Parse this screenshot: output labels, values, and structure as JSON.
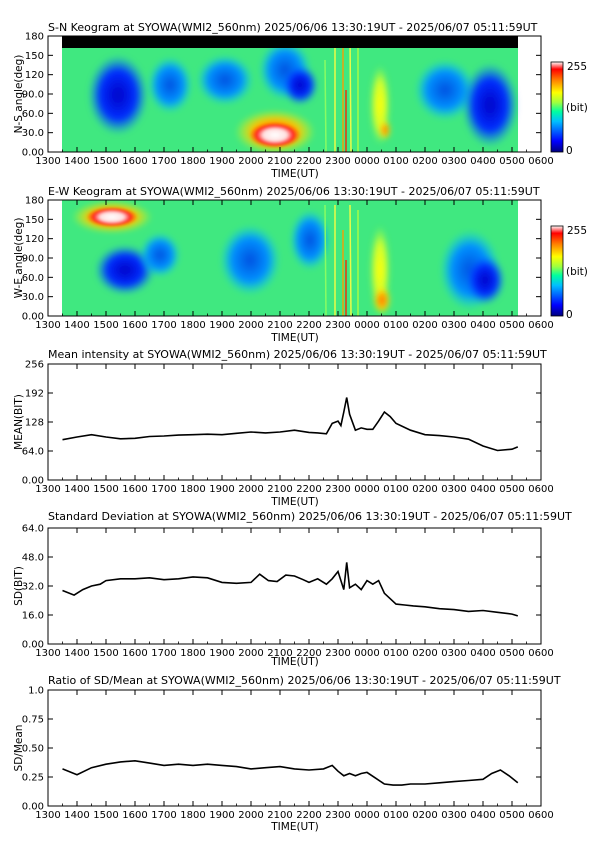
{
  "x_tick_labels": [
    "1300",
    "1400",
    "1500",
    "1600",
    "1700",
    "1800",
    "1900",
    "2000",
    "2100",
    "2200",
    "2300",
    "0000",
    "0100",
    "0200",
    "0300",
    "0400",
    "0500",
    "0600"
  ],
  "colorbar": {
    "max_label": "255",
    "unit_label": "(bit)",
    "min_label": "0"
  },
  "colors": {
    "jet": [
      "#00007f",
      "#0000ff",
      "#007fff",
      "#00ffff",
      "#7fff7f",
      "#ffff00",
      "#ff7f00",
      "#ff0000",
      "#ffffff"
    ]
  },
  "chart_data": [
    {
      "type": "heatmap",
      "title": "S-N Keogram at SYOWA(WMI2_560nm)    2025/06/06 13:30:19UT - 2025/06/07 05:11:59UT",
      "xlabel": "TIME(UT)",
      "ylabel": "N-S angle(deg)",
      "xlim": [
        13,
        30
      ],
      "ylim": [
        0,
        180
      ],
      "yticks": [
        "0.00",
        "30.0",
        "60.0",
        "90.0",
        "120",
        "150",
        "180"
      ],
      "zlim": [
        0,
        255
      ],
      "data_time_range": [
        13.51,
        29.2
      ]
    },
    {
      "type": "heatmap",
      "title": "E-W Keogram at SYOWA(WMI2_560nm)    2025/06/06 13:30:19UT - 2025/06/07 05:11:59UT",
      "xlabel": "TIME(UT)",
      "ylabel": "W-E angle(deg)",
      "xlim": [
        13,
        30
      ],
      "ylim": [
        0,
        180
      ],
      "yticks": [
        "0.00",
        "30.0",
        "60.0",
        "90.0",
        "120",
        "150",
        "180"
      ],
      "zlim": [
        0,
        255
      ],
      "data_time_range": [
        13.51,
        29.2
      ]
    },
    {
      "type": "line",
      "title": "Mean intensity at SYOWA(WMI2_560nm)    2025/06/06 13:30:19UT - 2025/06/07 05:11:59UT",
      "xlabel": "TIME(UT)",
      "ylabel": "MEAN(BIT)",
      "xlim": [
        13,
        30
      ],
      "ylim": [
        0,
        256
      ],
      "yticks": [
        "0.00",
        "64.0",
        "128",
        "192",
        "256"
      ],
      "x": [
        13.5,
        14,
        14.5,
        15,
        15.5,
        16,
        16.5,
        17,
        17.5,
        18,
        18.5,
        19,
        19.5,
        20,
        20.5,
        21,
        21.5,
        22,
        22.3,
        22.6,
        22.8,
        23,
        23.1,
        23.2,
        23.3,
        23.4,
        23.6,
        23.8,
        24,
        24.2,
        24.4,
        24.6,
        24.8,
        25,
        25.5,
        26,
        26.5,
        27,
        27.5,
        28,
        28.5,
        29,
        29.2
      ],
      "y": [
        89,
        95,
        100,
        95,
        91,
        92,
        96,
        97,
        99,
        100,
        101,
        100,
        103,
        106,
        104,
        106,
        110,
        105,
        104,
        102,
        125,
        130,
        120,
        150,
        182,
        145,
        110,
        115,
        112,
        112,
        130,
        150,
        140,
        125,
        110,
        100,
        98,
        95,
        90,
        75,
        65,
        68,
        73
      ]
    },
    {
      "type": "line",
      "title": "Standard Deviation at SYOWA(WMI2_560nm)    2025/06/06 13:30:19UT - 2025/06/07 05:11:59UT",
      "xlabel": "TIME(UT)",
      "ylabel": "SD(BIT)",
      "xlim": [
        13,
        30
      ],
      "ylim": [
        0,
        64
      ],
      "yticks": [
        "0.00",
        "16.0",
        "32.0",
        "48.0",
        "64.0"
      ],
      "x": [
        13.5,
        13.9,
        14.2,
        14.5,
        14.8,
        15,
        15.5,
        16,
        16.5,
        17,
        17.5,
        18,
        18.5,
        19,
        19.5,
        20,
        20.3,
        20.6,
        20.9,
        21.2,
        21.5,
        21.8,
        22,
        22.3,
        22.6,
        22.8,
        23,
        23.2,
        23.3,
        23.4,
        23.6,
        23.8,
        24,
        24.2,
        24.4,
        24.6,
        24.8,
        25,
        25.3,
        25.6,
        26,
        26.5,
        27,
        27.5,
        28,
        28.5,
        29,
        29.2
      ],
      "y": [
        29.5,
        27,
        30,
        32,
        33,
        35,
        36,
        36,
        36.5,
        35.5,
        36,
        37,
        36.5,
        34,
        33.5,
        34,
        38.5,
        35,
        34.5,
        38,
        37.5,
        35.5,
        34,
        36,
        33,
        36,
        40,
        30,
        45,
        31,
        33,
        30,
        35,
        33,
        35,
        28,
        25,
        22,
        21.5,
        21,
        20.5,
        19.5,
        19,
        18,
        18.5,
        17.5,
        16.5,
        15.5
      ]
    },
    {
      "type": "line",
      "title": "Ratio of SD/Mean at SYOWA(WMI2_560nm)    2025/06/06 13:30:19UT - 2025/06/07 05:11:59UT",
      "xlabel": "TIME(UT)",
      "ylabel": "SD/Mean",
      "xlim": [
        13,
        30
      ],
      "ylim": [
        0,
        1
      ],
      "yticks": [
        "0.00",
        "0.25",
        "0.50",
        "0.75",
        "1.0"
      ],
      "x": [
        13.5,
        14,
        14.5,
        15,
        15.5,
        16,
        16.5,
        17,
        17.5,
        18,
        18.5,
        19,
        19.5,
        20,
        20.5,
        21,
        21.5,
        22,
        22.5,
        22.8,
        23,
        23.2,
        23.4,
        23.6,
        23.8,
        24,
        24.3,
        24.6,
        24.9,
        25.2,
        25.5,
        26,
        26.5,
        27,
        27.5,
        28,
        28.3,
        28.6,
        28.9,
        29.2
      ],
      "y": [
        0.32,
        0.27,
        0.33,
        0.36,
        0.38,
        0.39,
        0.37,
        0.35,
        0.36,
        0.35,
        0.36,
        0.35,
        0.34,
        0.32,
        0.33,
        0.34,
        0.32,
        0.31,
        0.32,
        0.35,
        0.3,
        0.26,
        0.28,
        0.26,
        0.28,
        0.29,
        0.24,
        0.19,
        0.18,
        0.18,
        0.19,
        0.19,
        0.2,
        0.21,
        0.22,
        0.23,
        0.28,
        0.31,
        0.26,
        0.2
      ]
    }
  ]
}
